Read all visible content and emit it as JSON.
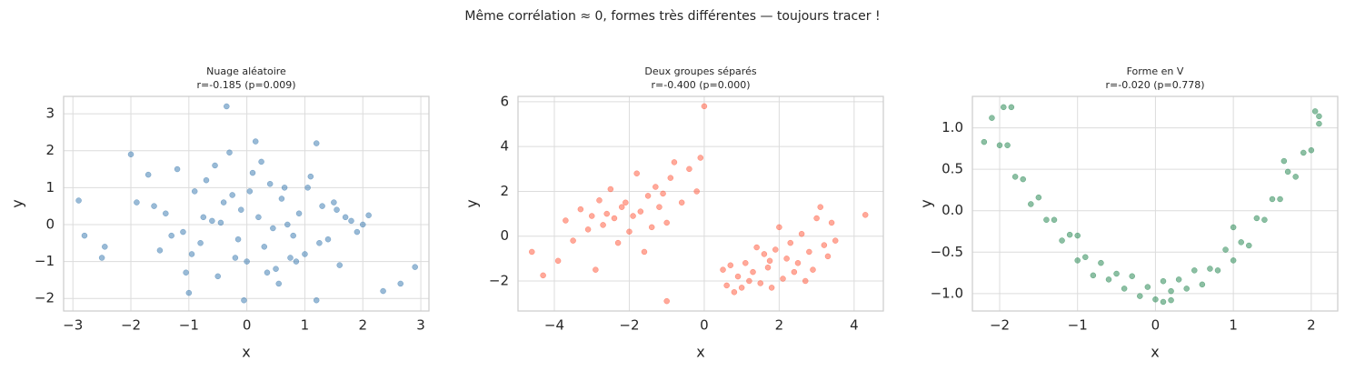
{
  "title": "Même corrélation ≈ 0, formes très différentes — toujours tracer !",
  "chart_data": [
    {
      "type": "scatter",
      "title": "Nuage aléatoire",
      "subtitle": "r=-0.185 (p=0.009)",
      "x_label": "x",
      "y_label": "y",
      "color": "#4682b4",
      "grid": true,
      "xlim": [
        -3.16,
        3.14
      ],
      "ylim": [
        -2.34,
        3.47
      ],
      "xticks": [
        {
          "value": -3,
          "label": "−3"
        },
        {
          "value": -2,
          "label": "−2"
        },
        {
          "value": -1,
          "label": "−1"
        },
        0,
        1,
        2,
        3
      ],
      "yticks": [
        {
          "value": -2,
          "label": "−2"
        },
        {
          "value": -1,
          "label": "−1"
        },
        0,
        1,
        2,
        3
      ],
      "x": [
        -2.9,
        -2.8,
        -2.5,
        -2.45,
        2.9,
        2.65,
        2.35,
        -0.35,
        1.2,
        0.15,
        -2.0,
        -1.0,
        1.2,
        -0.05,
        -1.7,
        -1.6,
        -1.4,
        -1.2,
        -1.1,
        -0.9,
        -0.8,
        -0.7,
        -0.6,
        -0.5,
        -0.4,
        -0.3,
        -0.2,
        -0.1,
        0.0,
        0.1,
        0.2,
        0.3,
        0.4,
        0.5,
        0.6,
        0.7,
        0.8,
        0.9,
        1.0,
        1.1,
        1.3,
        1.4,
        1.5,
        1.6,
        1.8,
        1.9,
        2.0,
        2.1,
        -1.9,
        -1.3,
        -0.95,
        -0.55,
        -0.25,
        0.05,
        0.35,
        0.65,
        0.85,
        1.25,
        1.55,
        -1.5,
        -0.75,
        0.45,
        1.05,
        -0.15,
        0.55,
        -1.05,
        0.25,
        0.75,
        -0.45,
        1.7
      ],
      "values": [
        0.65,
        -0.3,
        -0.9,
        -0.6,
        -1.15,
        -1.6,
        -1.8,
        3.2,
        2.2,
        2.25,
        1.9,
        -1.85,
        -2.05,
        -2.05,
        1.35,
        0.5,
        0.3,
        1.5,
        -0.2,
        0.9,
        -0.5,
        1.2,
        0.1,
        -1.4,
        0.6,
        1.95,
        -0.9,
        0.4,
        -1.0,
        1.4,
        0.2,
        -0.6,
        1.1,
        -1.2,
        0.7,
        0.0,
        -0.3,
        0.3,
        -0.8,
        1.3,
        0.5,
        -0.4,
        0.6,
        -1.1,
        0.1,
        -0.2,
        0.0,
        0.25,
        0.6,
        -0.3,
        -0.8,
        1.6,
        0.8,
        0.9,
        -1.3,
        1.0,
        -1.0,
        -0.5,
        0.4,
        -0.7,
        0.2,
        -0.1,
        1.0,
        -0.4,
        -1.6,
        -1.3,
        1.7,
        -0.9,
        0.05,
        0.2
      ]
    },
    {
      "type": "scatter",
      "title": "Deux groupes séparés",
      "subtitle": "r=-0.400 (p=0.000)",
      "x_label": "x",
      "y_label": "y",
      "color": "#ff6347",
      "grid": true,
      "xlim": [
        -4.97,
        4.78
      ],
      "ylim": [
        -3.34,
        6.24
      ],
      "xticks": [
        {
          "value": -4,
          "label": "−4"
        },
        {
          "value": -2,
          "label": "−2"
        },
        0,
        2,
        4
      ],
      "yticks": [
        {
          "value": -2,
          "label": "−2"
        },
        0,
        2,
        4,
        6
      ],
      "x": [
        -3.9,
        -3.7,
        -3.5,
        -3.3,
        -3.1,
        -3.0,
        -2.9,
        -2.8,
        -2.7,
        -2.6,
        -2.5,
        -2.4,
        -2.3,
        -2.2,
        -2.1,
        -2.0,
        -1.9,
        -1.8,
        -1.7,
        -1.6,
        -1.5,
        -1.4,
        -1.3,
        -1.2,
        -1.1,
        -1.0,
        -0.9,
        -0.8,
        -0.6,
        -0.4,
        -0.2,
        -0.1,
        0.5,
        0.6,
        0.7,
        0.8,
        0.9,
        1.0,
        1.1,
        1.2,
        1.3,
        1.4,
        1.5,
        1.6,
        1.7,
        1.8,
        1.9,
        2.0,
        2.1,
        2.2,
        2.3,
        2.4,
        2.5,
        2.6,
        2.7,
        2.8,
        2.9,
        3.0,
        3.1,
        3.2,
        3.3,
        3.4,
        3.5,
        1.75,
        0.0,
        -1.0,
        4.3,
        -4.3,
        -4.6
      ],
      "values": [
        -1.1,
        0.7,
        -0.2,
        1.2,
        0.3,
        0.9,
        -1.5,
        1.6,
        0.5,
        1.0,
        2.1,
        0.8,
        -0.3,
        1.3,
        1.5,
        0.2,
        0.9,
        2.8,
        1.1,
        -0.7,
        1.8,
        0.4,
        2.2,
        1.3,
        1.9,
        0.6,
        2.6,
        3.3,
        1.5,
        3.0,
        2.0,
        3.5,
        -1.5,
        -2.2,
        -1.3,
        -2.5,
        -1.8,
        -2.3,
        -1.2,
        -2.0,
        -1.6,
        -0.5,
        -2.1,
        -0.8,
        -1.4,
        -2.3,
        -0.6,
        0.4,
        -1.9,
        -1.0,
        -0.3,
        -1.6,
        -1.2,
        0.1,
        -2.0,
        -0.7,
        -1.5,
        0.8,
        1.3,
        -0.4,
        -0.9,
        0.6,
        -0.2,
        -1.1,
        5.8,
        -2.9,
        0.95,
        -1.75,
        -0.7
      ]
    },
    {
      "type": "scatter",
      "title": "Forme en V",
      "subtitle": "r=-0.020 (p=0.778)",
      "x_label": "x",
      "y_label": "y",
      "color": "#2e8b57",
      "grid": true,
      "xlim": [
        -2.35,
        2.34
      ],
      "ylim": [
        -1.21,
        1.38
      ],
      "xticks": [
        {
          "value": -2,
          "label": "−2"
        },
        {
          "value": -1,
          "label": "−1"
        },
        0,
        1,
        2
      ],
      "yticks": [
        {
          "value": -1,
          "label": "−1.0"
        },
        {
          "value": -0.5,
          "label": "−0.5"
        },
        {
          "value": 0,
          "label": "0.0"
        },
        0.5,
        {
          "value": 1,
          "label": "1.0"
        }
      ],
      "x": [
        -2.1,
        -2.0,
        -1.9,
        -1.8,
        -1.7,
        -1.6,
        -1.5,
        -1.4,
        -1.3,
        -1.2,
        -1.1,
        -1.0,
        -0.9,
        -0.8,
        -0.7,
        -0.6,
        -0.5,
        -0.4,
        -0.3,
        -0.2,
        -0.1,
        0.0,
        0.1,
        0.2,
        0.3,
        0.4,
        0.5,
        0.6,
        0.7,
        0.8,
        0.9,
        1.0,
        1.1,
        1.2,
        1.3,
        1.4,
        1.5,
        1.6,
        1.7,
        1.8,
        1.9,
        2.0,
        2.1,
        -2.2,
        -1.85,
        -1.95,
        2.05,
        2.1,
        0.1,
        0.2,
        1.65,
        -1.0,
        1.0
      ],
      "values": [
        1.12,
        0.79,
        0.79,
        0.41,
        0.38,
        0.08,
        0.16,
        -0.11,
        -0.11,
        -0.36,
        -0.29,
        -0.6,
        -0.56,
        -0.78,
        -0.63,
        -0.83,
        -0.76,
        -0.94,
        -0.79,
        -1.03,
        -0.92,
        -1.07,
        -0.85,
        -0.97,
        -0.83,
        -0.94,
        -0.72,
        -0.89,
        -0.7,
        -0.72,
        -0.47,
        -0.6,
        -0.38,
        -0.42,
        -0.09,
        -0.11,
        0.14,
        0.14,
        0.47,
        0.41,
        0.7,
        0.73,
        1.14,
        0.83,
        1.25,
        1.25,
        1.2,
        1.05,
        -1.1,
        -1.08,
        0.6,
        -0.3,
        -0.2
      ]
    }
  ]
}
